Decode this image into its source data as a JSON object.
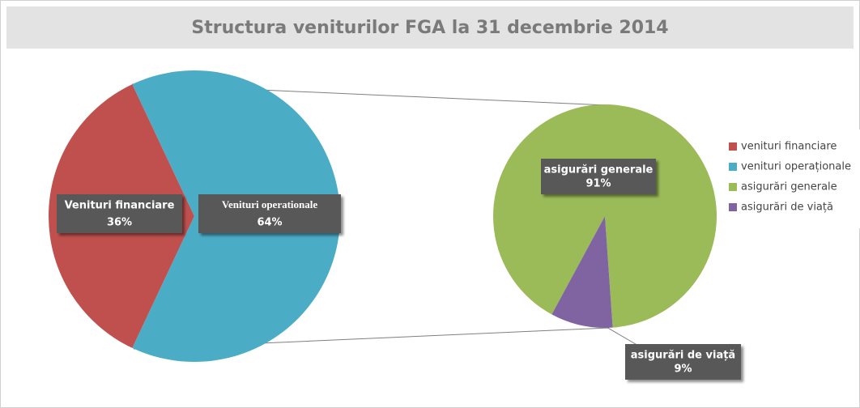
{
  "chart_data": [
    {
      "type": "pie",
      "title": "Structura veniturilor FGA la 31 decembrie 2014",
      "categories": [
        "venituri financiare",
        "venituri operaționale"
      ],
      "labels": [
        "Venituri financiare",
        "Venituri operationale"
      ],
      "values": [
        36,
        64
      ],
      "value_labels": [
        "36%",
        "64%"
      ],
      "colors": [
        "#c0504d",
        "#4bacc6"
      ]
    },
    {
      "type": "pie",
      "categories": [
        "asigurări generale",
        "asigurări de viață"
      ],
      "labels": [
        "asigurări generale",
        "asigurări de viață"
      ],
      "values": [
        91,
        9
      ],
      "value_labels": [
        "91%",
        "9%"
      ],
      "colors": [
        "#9bbb59",
        "#8064a2"
      ]
    }
  ]
}
